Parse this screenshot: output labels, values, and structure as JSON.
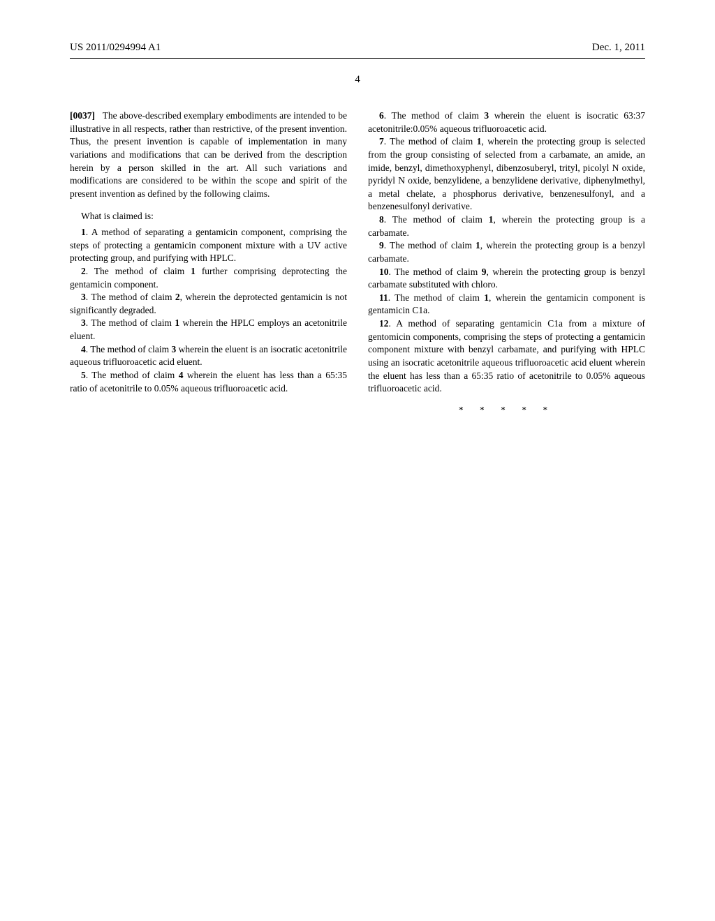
{
  "header": {
    "left": "US 2011/0294994 A1",
    "right": "Dec. 1, 2011"
  },
  "page_number": "4",
  "left_column": {
    "para0037_num": "[0037]",
    "para0037": "The above-described exemplary embodiments are intended to be illustrative in all respects, rather than restrictive, of the present invention. Thus, the present invention is capable of implementation in many variations and modifications that can be derived from the description herein by a person skilled in the art. All such variations and modifications are considered to be within the scope and spirit of the present invention as defined by the following claims.",
    "claims_intro": "What is claimed is:",
    "claim1_num": "1",
    "claim1": ". A method of separating a gentamicin component, comprising the steps of protecting a gentamicin component mixture with a UV active protecting group, and purifying with HPLC.",
    "claim2_num": "2",
    "claim2": ". The method of claim ",
    "claim2_ref": "1",
    "claim2_rest": " further comprising deprotecting the gentamicin component.",
    "claim3a_num": "3",
    "claim3a": ". The method of claim ",
    "claim3a_ref": "2",
    "claim3a_rest": ", wherein the deprotected gentamicin is not significantly degraded.",
    "claim3b_num": "3",
    "claim3b": ". The method of claim ",
    "claim3b_ref": "1",
    "claim3b_rest": " wherein the HPLC employs an acetonitrile eluent.",
    "claim4_num": "4",
    "claim4": ". The method of claim ",
    "claim4_ref": "3",
    "claim4_rest": " wherein the eluent is an isocratic acetonitrile aqueous trifluoroacetic acid eluent.",
    "claim5_num": "5",
    "claim5": ". The method of claim ",
    "claim5_ref": "4",
    "claim5_rest": " wherein the eluent has less than a 65:35 ratio of acetonitrile to 0.05% aqueous trifluoroacetic acid."
  },
  "right_column": {
    "claim6_num": "6",
    "claim6": ". The method of claim ",
    "claim6_ref": "3",
    "claim6_rest": " wherein the eluent is isocratic 63:37 acetonitrile:0.05% aqueous trifluoroacetic acid.",
    "claim7_num": "7",
    "claim7": ". The method of claim ",
    "claim7_ref": "1",
    "claim7_rest": ", wherein the protecting group is selected from the group consisting of selected from a carbamate, an amide, an imide, benzyl, dimethoxyphenyl, dibenzosuberyl, trityl, picolyl N oxide, pyridyl N oxide, benzylidene, a benzylidene derivative, diphenylmethyl, a metal chelate, a phosphorus derivative, benzenesulfonyl, and a benzenesulfonyl derivative.",
    "claim8_num": "8",
    "claim8": ". The method of claim ",
    "claim8_ref": "1",
    "claim8_rest": ", wherein the protecting group is a carbamate.",
    "claim9_num": "9",
    "claim9": ". The method of claim ",
    "claim9_ref": "1",
    "claim9_rest": ", wherein the protecting group is a benzyl carbamate.",
    "claim10_num": "10",
    "claim10": ". The method of claim ",
    "claim10_ref": "9",
    "claim10_rest": ", wherein the protecting group is benzyl carbamate substituted with chloro.",
    "claim11_num": "11",
    "claim11": ". The method of claim ",
    "claim11_ref": "1",
    "claim11_rest": ", wherein the gentamicin component is gentamicin C1a.",
    "claim12_num": "12",
    "claim12": ". A method of separating gentamicin C1a from a mixture of gentomicin components, comprising the steps of protecting a gentamicin component mixture with benzyl carbamate, and purifying with HPLC using an isocratic acetonitrile aqueous trifluoroacetic acid eluent wherein the eluent has less than a 65:35 ratio of acetonitrile to 0.05% aqueous trifluoroacetic acid.",
    "stars": "*   *   *   *   *"
  }
}
